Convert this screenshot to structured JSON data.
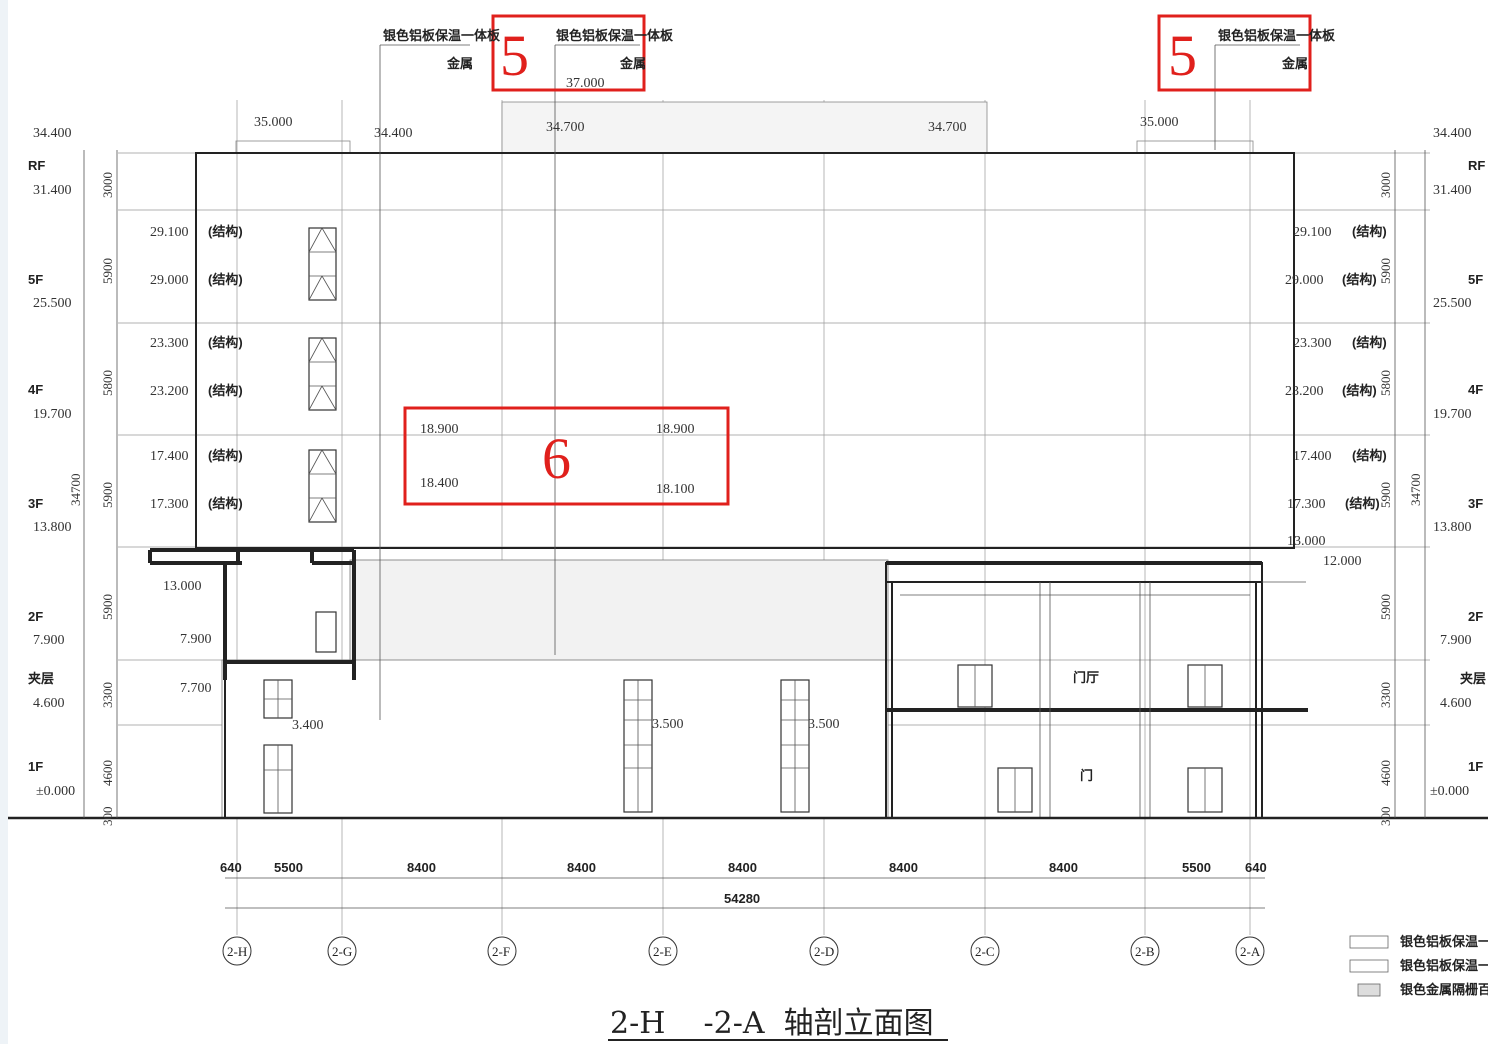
{
  "drawing_title": "2-H    -2-A  轴剖立面图",
  "callouts": {
    "mark5": "5",
    "mark6": "6"
  },
  "top_labels": {
    "panel_note_1": "银色铝板保温一体板",
    "panel_note_2": "金属",
    "panel_note_1b": "银色铝板保温一体板",
    "panel_note_2b": "金属",
    "panel_note_1c": "银色铝板保温一体板",
    "panel_note_2c": "金属",
    "elev_37000": "37.000",
    "elev_35000_l": "35.000",
    "elev_34400_m": "34.400",
    "elev_34700_l": "34.700",
    "elev_34700_r": "34.700",
    "elev_35000_r": "35.000"
  },
  "left_levels": [
    {
      "floor": "RF",
      "top": "34.400",
      "level": "31.400"
    },
    {
      "floor": "5F",
      "level": "25.500"
    },
    {
      "floor": "4F",
      "level": "19.700"
    },
    {
      "floor": "3F",
      "level": "13.800"
    },
    {
      "floor": "2F",
      "level": "7.900"
    },
    {
      "floor": "夹层",
      "level": "4.600"
    },
    {
      "floor": "1F",
      "level": "±0.000"
    }
  ],
  "right_levels": [
    {
      "floor": "RF",
      "top": "34.400",
      "level": "31.400"
    },
    {
      "floor": "5F",
      "level": "25.500"
    },
    {
      "floor": "4F",
      "level": "19.700"
    },
    {
      "floor": "3F",
      "level": "13.800"
    },
    {
      "floor": "2F",
      "level": "7.900"
    },
    {
      "floor": "夹层",
      "level": "4.600"
    },
    {
      "floor": "1F",
      "level": "±0.000"
    }
  ],
  "storey_heights": [
    "3000",
    "5900",
    "5800",
    "5900",
    "5900",
    "3300",
    "4600",
    "300"
  ],
  "total_height": "34700",
  "left_struct": [
    {
      "a": "29.100",
      "b": "(结构)"
    },
    {
      "a": "29.000",
      "b": "(结构)"
    },
    {
      "a": "23.300",
      "b": "(结构)"
    },
    {
      "a": "23.200",
      "b": "(结构)"
    },
    {
      "a": "17.400",
      "b": "(结构)"
    },
    {
      "a": "17.300",
      "b": "(结构)"
    }
  ],
  "right_struct": [
    {
      "a": "29.100",
      "b": "(结构)"
    },
    {
      "a": "29.000",
      "b": "(结构)"
    },
    {
      "a": "23.300",
      "b": "(结构)"
    },
    {
      "a": "23.200",
      "b": "(结构)"
    },
    {
      "a": "17.400",
      "b": "(结构)"
    },
    {
      "a": "17.300",
      "b": "(结构)"
    },
    {
      "a": "13.000",
      "b": ""
    },
    {
      "a": "12.000",
      "b": ""
    }
  ],
  "mid_labels": {
    "e13000": "13.000",
    "e7900": "7.900",
    "e7700": "7.700",
    "e3400": "3.400",
    "e3500a": "3.500",
    "e3500b": "3.500",
    "e18900a": "18.900",
    "e18400": "18.400",
    "e18900b": "18.900",
    "e18100": "18.100",
    "room_a": "门厅",
    "room_b": "门"
  },
  "axis_dims": [
    "640",
    "5500",
    "8400",
    "8400",
    "8400",
    "8400",
    "8400",
    "5500",
    "640"
  ],
  "axis_total": "54280",
  "axes": [
    "2-H",
    "2-G",
    "2-F",
    "2-E",
    "2-D",
    "2-C",
    "2-B",
    "2-A"
  ],
  "legend": [
    {
      "label": "银色铝板保温一体板"
    },
    {
      "label": "银色铝板保温一体板"
    },
    {
      "label": "银色金属隔栅百叶"
    }
  ],
  "colors": {
    "callout": "#e0201c",
    "line": "#222222"
  }
}
